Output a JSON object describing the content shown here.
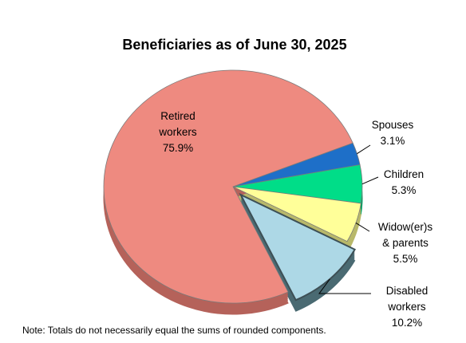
{
  "chart_data": {
    "type": "pie",
    "title": "Beneficiaries as of June 30, 2025",
    "slices": [
      {
        "name": "Retired workers",
        "label_lines": [
          "Retired",
          "workers"
        ],
        "value": 75.9,
        "value_label": "75.9%",
        "color": "#EE8A80",
        "side_color": "#B5625A"
      },
      {
        "name": "Spouses",
        "label_lines": [
          "Spouses"
        ],
        "value": 3.1,
        "value_label": "3.1%",
        "color": "#1E6FC8",
        "side_color": "#164E8C"
      },
      {
        "name": "Children",
        "label_lines": [
          "Children"
        ],
        "value": 5.3,
        "value_label": "5.3%",
        "color": "#00DD88",
        "side_color": "#009E60"
      },
      {
        "name": "Widow(er)s & parents",
        "label_lines": [
          "Widow(er)s",
          "& parents"
        ],
        "value": 5.5,
        "value_label": "5.5%",
        "color": "#FFFF99",
        "side_color": "#B8B86A"
      },
      {
        "name": "Disabled workers",
        "label_lines": [
          "Disabled",
          "workers"
        ],
        "value": 10.2,
        "value_label": "10.2%",
        "color": "#ADD8E6",
        "side_color": "#4A6A72",
        "exploded": true
      }
    ]
  },
  "note": "Note: Totals do not necessarily equal the sums of rounded components."
}
